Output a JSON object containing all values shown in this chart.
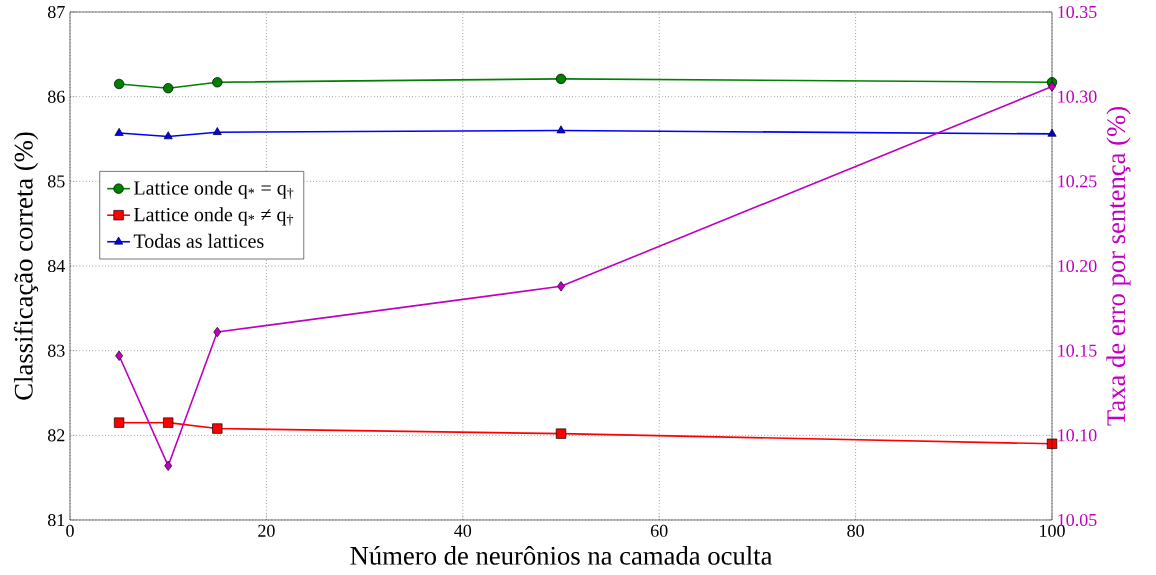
{
  "chart_data": {
    "type": "line",
    "xlabel": "Número de neurônios na camada oculta",
    "ylabel": "Classificação correta (%)",
    "y2label": "Taxa de erro por sentença (%)",
    "x": [
      5,
      10,
      15,
      50,
      100
    ],
    "series": [
      {
        "name": "Lattice onde q$_{*}$ = q$_{†}$",
        "color": "#008000",
        "marker": "circle",
        "values": [
          86.15,
          86.1,
          86.17,
          86.21,
          86.17
        ]
      },
      {
        "name": "Lattice onde q$_{*}$ ≠ q$_{†}$",
        "color": "#ff0000",
        "marker": "square",
        "values": [
          82.15,
          82.15,
          82.08,
          82.02,
          81.9
        ]
      },
      {
        "name": "Todas as lattices",
        "color": "#0000ff",
        "marker": "triangle",
        "values": [
          85.57,
          85.53,
          85.58,
          85.6,
          85.56
        ]
      },
      {
        "color": "#bf00bf",
        "marker": "diamond",
        "axis": "y2",
        "values": [
          10.147,
          10.082,
          10.161,
          10.188,
          10.306
        ]
      }
    ],
    "xlim": [
      0,
      100
    ],
    "xticks": [
      0,
      20,
      40,
      60,
      80,
      100
    ],
    "ylim": [
      81,
      87
    ],
    "yticks": [
      81,
      82,
      83,
      84,
      85,
      86,
      87
    ],
    "y2lim": [
      10.05,
      10.35
    ],
    "y2ticks": [
      {
        "value": 10.05,
        "label": "10.05"
      },
      {
        "value": 10.1,
        "label": "10.10"
      },
      {
        "value": 10.15,
        "label": "10.15"
      },
      {
        "value": 10.2,
        "label": "10.20"
      },
      {
        "value": 10.25,
        "label": "10.25"
      },
      {
        "value": 10.3,
        "label": "10.30"
      },
      {
        "value": 10.35,
        "label": "10.35"
      }
    ],
    "grid": true,
    "legend": "left",
    "line_style": "solid"
  }
}
